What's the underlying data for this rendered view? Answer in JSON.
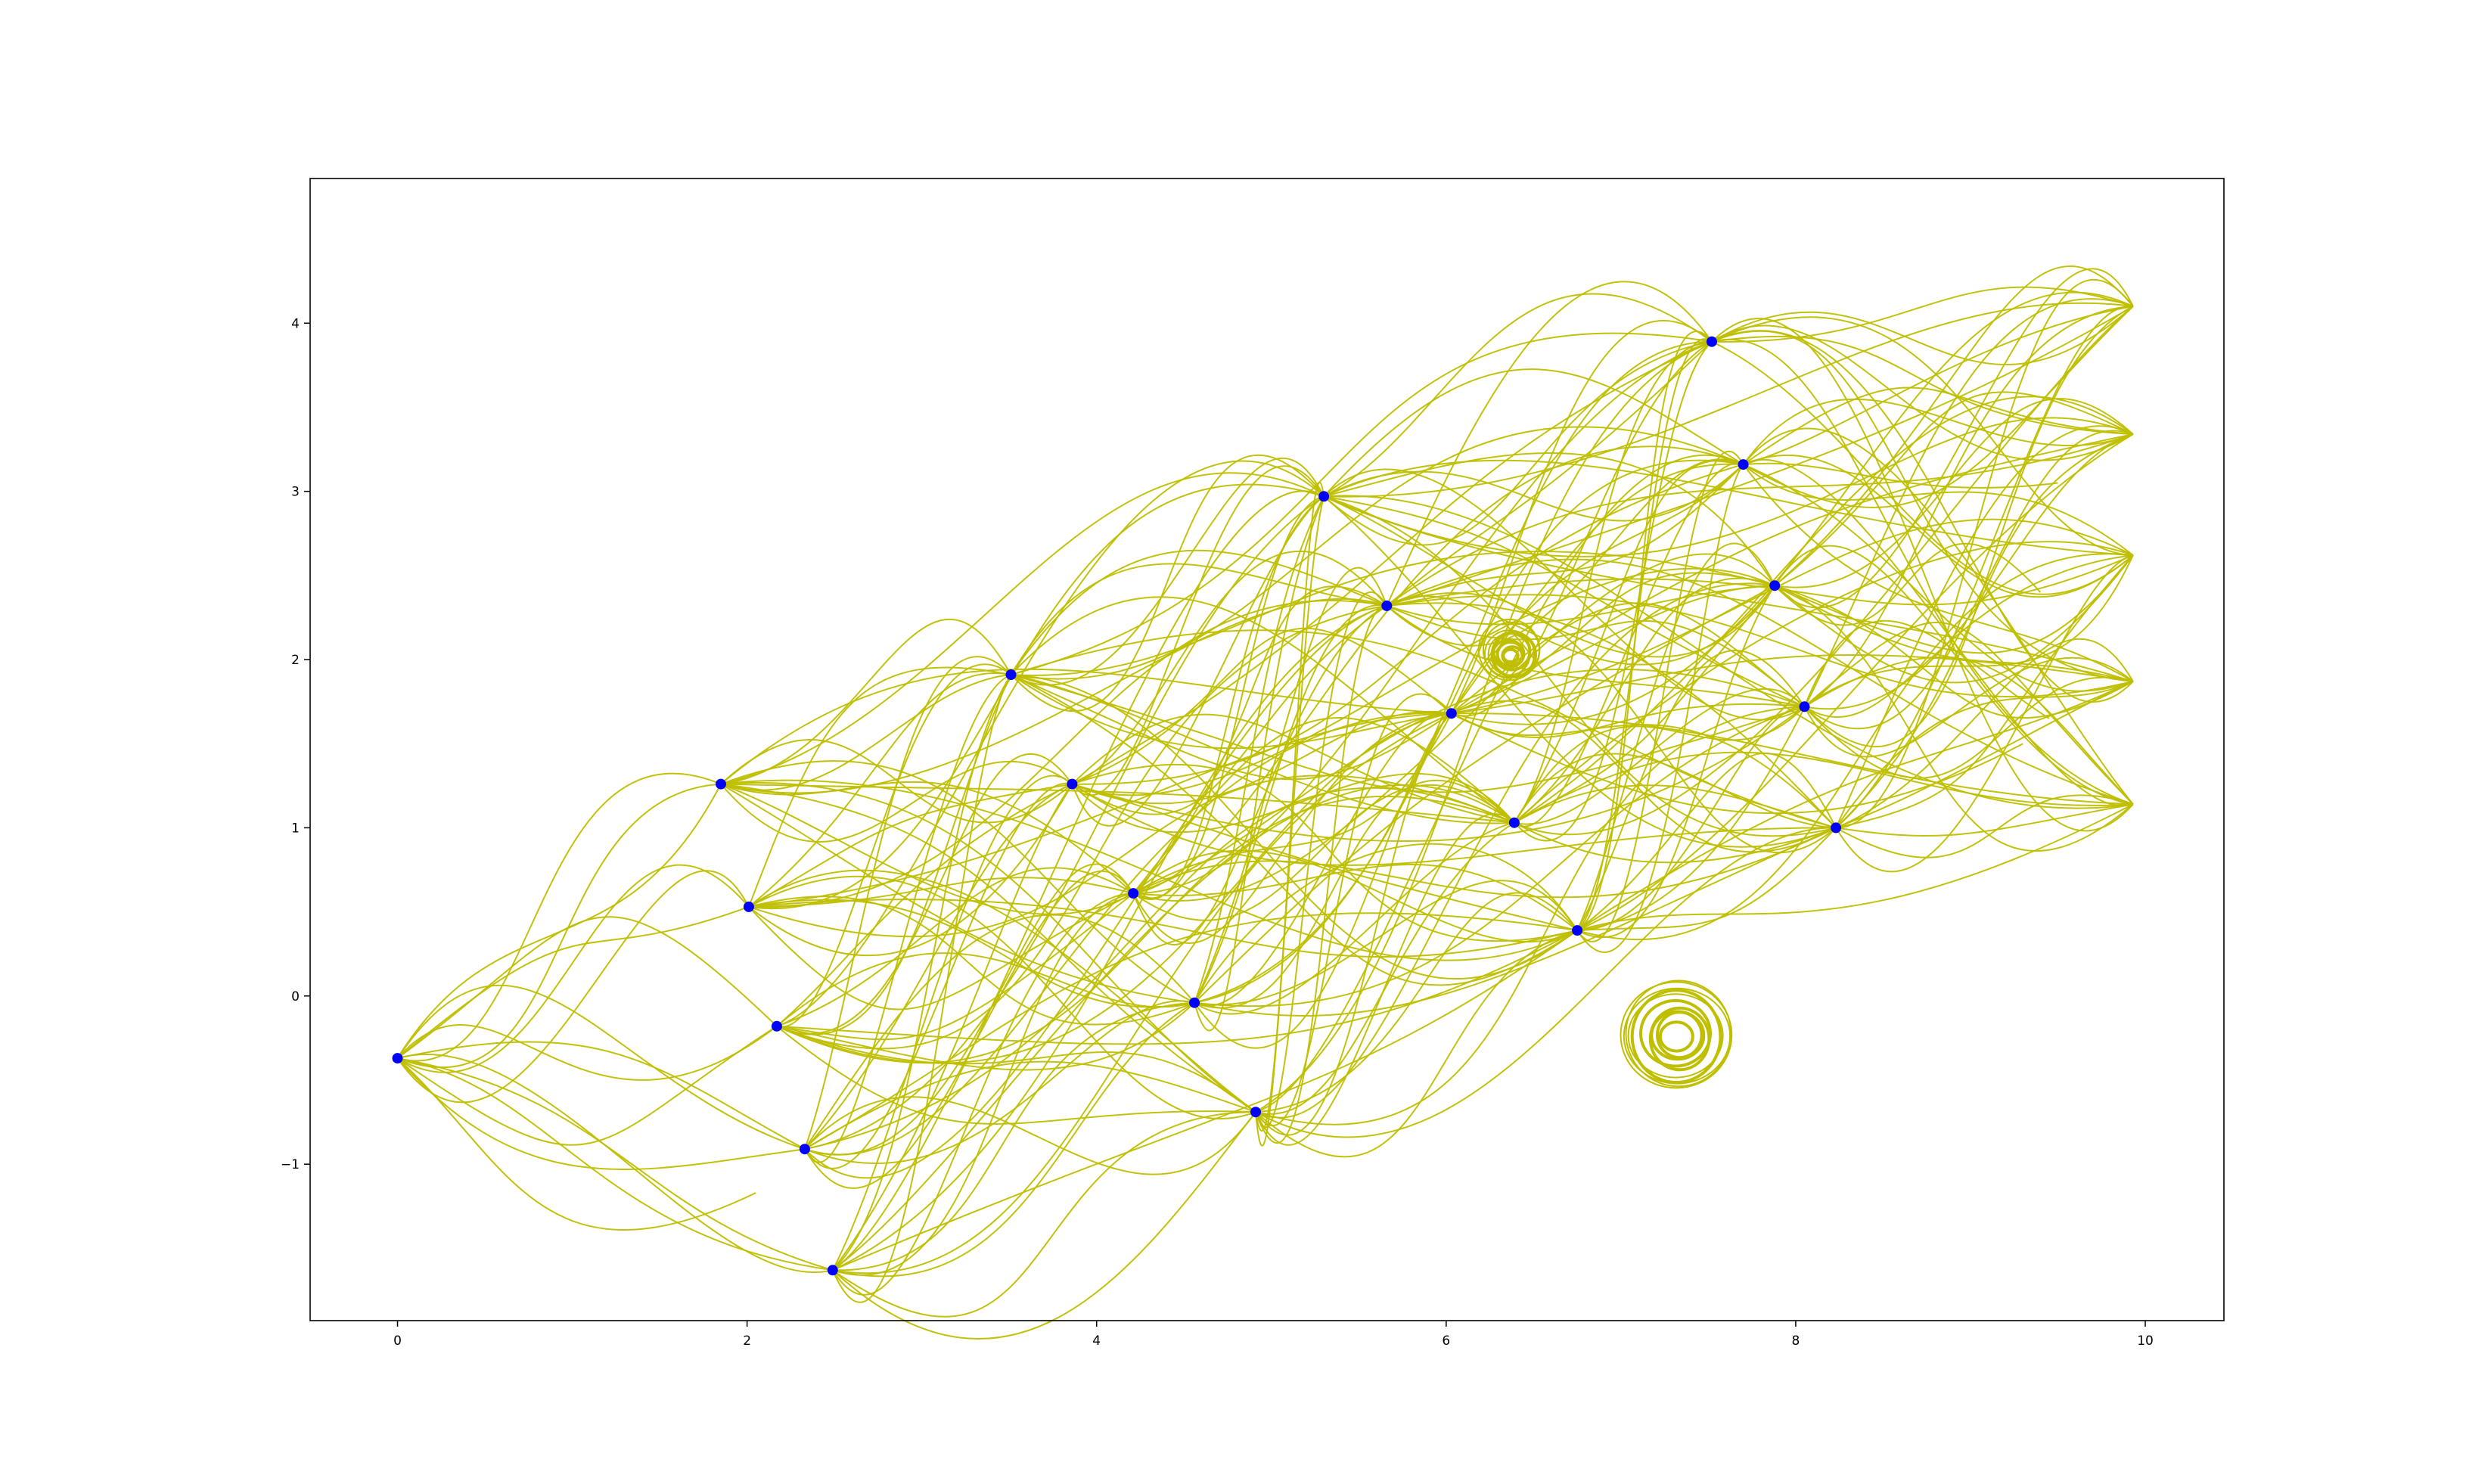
{
  "chart_data": {
    "type": "scatter",
    "title": "",
    "xlabel": "",
    "ylabel": "",
    "xlim": [
      -0.5,
      10.45
    ],
    "ylim": [
      -1.93,
      4.86
    ],
    "xticks": [
      0,
      2,
      4,
      6,
      8,
      10
    ],
    "yticks": [
      -1,
      0,
      1,
      2,
      3,
      4
    ],
    "xtick_labels": [
      "0",
      "2",
      "4",
      "6",
      "8",
      "10"
    ],
    "ytick_labels": [
      "−1",
      "0",
      "1",
      "2",
      "3",
      "4"
    ],
    "grid": false,
    "legend": "none",
    "colors": {
      "nodes": "#0000ff",
      "edges": "#bfbf00",
      "axes": "#000000"
    },
    "nodes": [
      {
        "x": 0.0,
        "y": -0.37
      },
      {
        "x": 1.85,
        "y": 1.26
      },
      {
        "x": 2.01,
        "y": 0.53
      },
      {
        "x": 2.17,
        "y": -0.18
      },
      {
        "x": 2.33,
        "y": -0.91
      },
      {
        "x": 2.49,
        "y": -1.63
      },
      {
        "x": 3.51,
        "y": 1.91
      },
      {
        "x": 3.86,
        "y": 1.26
      },
      {
        "x": 4.21,
        "y": 0.61
      },
      {
        "x": 4.56,
        "y": -0.04
      },
      {
        "x": 4.91,
        "y": -0.69
      },
      {
        "x": 5.3,
        "y": 2.97
      },
      {
        "x": 5.66,
        "y": 2.32
      },
      {
        "x": 6.03,
        "y": 1.68
      },
      {
        "x": 6.39,
        "y": 1.03
      },
      {
        "x": 6.75,
        "y": 0.39
      },
      {
        "x": 7.52,
        "y": 3.89
      },
      {
        "x": 7.7,
        "y": 3.16
      },
      {
        "x": 7.88,
        "y": 2.44
      },
      {
        "x": 8.05,
        "y": 1.72
      },
      {
        "x": 8.23,
        "y": 1.0
      }
    ],
    "endpoints": [
      {
        "x": 9.93,
        "y": 4.1
      },
      {
        "x": 9.93,
        "y": 3.34
      },
      {
        "x": 9.93,
        "y": 2.62
      },
      {
        "x": 9.93,
        "y": 1.87
      },
      {
        "x": 9.93,
        "y": 1.14
      }
    ],
    "vortices": [
      {
        "x": 6.37,
        "y": 2.04,
        "r": 0.17
      },
      {
        "x": 7.32,
        "y": -0.24,
        "r": 0.35
      }
    ]
  }
}
